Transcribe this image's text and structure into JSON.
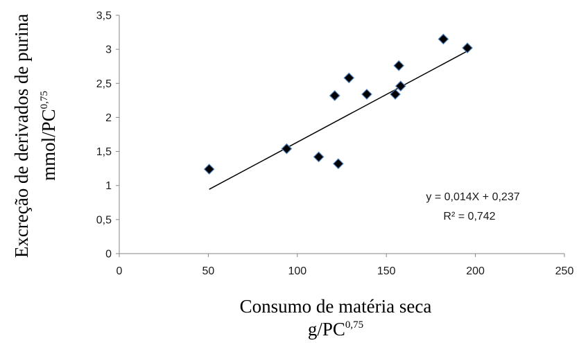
{
  "chart_data": {
    "type": "scatter",
    "title": "",
    "xlabel": "Consumo de matéria seca",
    "xlabel_unit": "g/PC",
    "xlabel_exp": "0,75",
    "ylabel": "Excreção de derivados de purina",
    "ylabel_unit": "mmol/PC",
    "ylabel_exp": "0,75",
    "xlim": [
      0,
      250
    ],
    "ylim": [
      0,
      3.5
    ],
    "xticks": [
      "0",
      "50",
      "100",
      "150",
      "200",
      "250"
    ],
    "yticks": [
      "0",
      "0,5",
      "1",
      "1,5",
      "2",
      "2,5",
      "3",
      "3,5"
    ],
    "grid": false,
    "legend": "none",
    "marker": "diamond",
    "marker_color": "#000000",
    "marker_edge_color": "#4f81bd",
    "points": [
      {
        "x": 50.5,
        "y": 1.24
      },
      {
        "x": 94,
        "y": 1.54
      },
      {
        "x": 112,
        "y": 1.42
      },
      {
        "x": 121,
        "y": 2.32
      },
      {
        "x": 123,
        "y": 1.32
      },
      {
        "x": 129,
        "y": 2.58
      },
      {
        "x": 139,
        "y": 2.34
      },
      {
        "x": 155,
        "y": 2.34
      },
      {
        "x": 157,
        "y": 2.76
      },
      {
        "x": 158,
        "y": 2.46
      },
      {
        "x": 182,
        "y": 3.15
      },
      {
        "x": 195.5,
        "y": 3.02
      }
    ],
    "trendline": {
      "slope": 0.014,
      "intercept": 0.237,
      "x_range": [
        50.5,
        195.5
      ],
      "equation": "y = 0,014X + 0,237",
      "r2": "R² = 0,742",
      "color": "#000000"
    }
  }
}
